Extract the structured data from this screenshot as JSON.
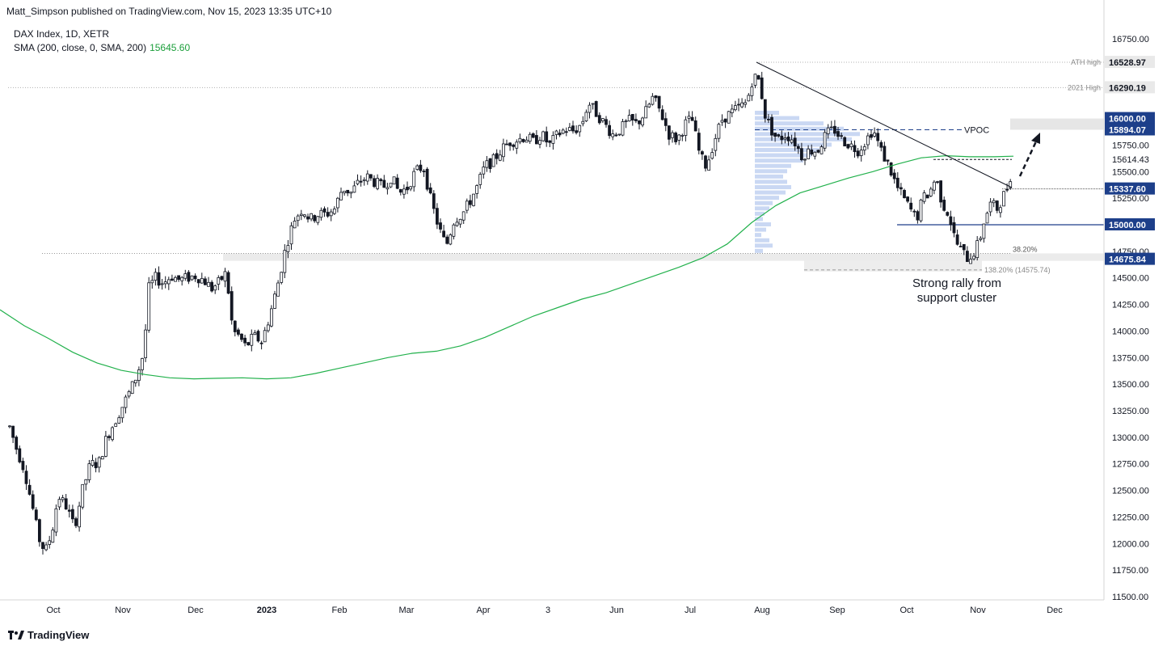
{
  "header": {
    "published": "Matt_Simpson published on TradingView.com, Nov 15, 2023 13:35 UTC+10"
  },
  "legend": {
    "symbol": "DAX Index, 1D, XETR",
    "indicator": "SMA (200, close, 0, SMA, 200)",
    "indicator_value": "15645.60"
  },
  "branding": {
    "logo_text": "TradingView"
  },
  "colors": {
    "up": "#131722",
    "down": "#131722",
    "sma": "#22b14c",
    "price_box": "#1d3f8a",
    "grey_box": "#e6e6e6",
    "vprofile": "#b3c7ee"
  },
  "chart_data": {
    "type": "candlestick",
    "ylim": [
      11500,
      16750
    ],
    "yticks": [
      "16750.00",
      "15750.00",
      "15500.00",
      "15250.00",
      "14750.00",
      "14500.00",
      "14250.00",
      "14000.00",
      "13750.00",
      "13500.00",
      "13250.00",
      "13000.00",
      "12750.00",
      "12500.00",
      "12250.00",
      "12000.00",
      "11750.00",
      "11500.00"
    ],
    "xticks": [
      "Oct",
      "Nov",
      "Dec",
      "2023",
      "Feb",
      "Mar",
      "Apr",
      "3",
      "Jun",
      "Jul",
      "Aug",
      "Sep",
      "Oct",
      "Nov",
      "Dec"
    ],
    "price_labels": [
      {
        "value": 16528.97,
        "text": "16528.97",
        "style": "grey",
        "tag": "ATH high"
      },
      {
        "value": 16290.19,
        "text": "16290.19",
        "style": "grey",
        "tag": "2021 High"
      },
      {
        "value": 16000.0,
        "text": "16000.00",
        "style": "blue"
      },
      {
        "value": 15894.07,
        "text": "15894.07",
        "style": "blue"
      },
      {
        "value": 15614.43,
        "text": "15614.43",
        "style": "plain"
      },
      {
        "value": 15337.6,
        "text": "15337.60",
        "style": "blue"
      },
      {
        "value": 15000.0,
        "text": "15000.00",
        "style": "blue"
      },
      {
        "value": 14675.84,
        "text": "14675.84",
        "style": "blue"
      }
    ],
    "annotations": {
      "vpoc": "VPOC",
      "fib_38": "38.20%",
      "fib_138": "138.20% (14575.74)",
      "rally_line1": "Strong rally from",
      "rally_line2": "support cluster"
    },
    "sma200": [
      [
        0,
        14200
      ],
      [
        30,
        14050
      ],
      [
        60,
        13930
      ],
      [
        90,
        13800
      ],
      [
        120,
        13700
      ],
      [
        150,
        13630
      ],
      [
        180,
        13590
      ],
      [
        210,
        13560
      ],
      [
        240,
        13550
      ],
      [
        270,
        13555
      ],
      [
        300,
        13560
      ],
      [
        330,
        13550
      ],
      [
        360,
        13560
      ],
      [
        390,
        13600
      ],
      [
        420,
        13650
      ],
      [
        450,
        13700
      ],
      [
        480,
        13750
      ],
      [
        510,
        13790
      ],
      [
        540,
        13810
      ],
      [
        570,
        13860
      ],
      [
        600,
        13940
      ],
      [
        630,
        14040
      ],
      [
        660,
        14140
      ],
      [
        690,
        14220
      ],
      [
        720,
        14300
      ],
      [
        750,
        14360
      ],
      [
        780,
        14440
      ],
      [
        810,
        14520
      ],
      [
        840,
        14600
      ],
      [
        870,
        14690
      ],
      [
        900,
        14820
      ],
      [
        930,
        15020
      ],
      [
        960,
        15180
      ],
      [
        990,
        15300
      ],
      [
        1020,
        15370
      ],
      [
        1050,
        15440
      ],
      [
        1080,
        15500
      ],
      [
        1110,
        15570
      ],
      [
        1140,
        15630
      ],
      [
        1170,
        15650
      ],
      [
        1200,
        15640
      ],
      [
        1230,
        15640
      ],
      [
        1254,
        15645
      ]
    ],
    "candles_anchor_path": [
      [
        12,
        13100
      ],
      [
        20,
        12900
      ],
      [
        30,
        12700
      ],
      [
        40,
        12350
      ],
      [
        48,
        12050
      ],
      [
        56,
        11920
      ],
      [
        64,
        12100
      ],
      [
        72,
        12450
      ],
      [
        82,
        12350
      ],
      [
        92,
        12150
      ],
      [
        102,
        12500
      ],
      [
        112,
        12750
      ],
      [
        122,
        12750
      ],
      [
        132,
        13000
      ],
      [
        142,
        13150
      ],
      [
        152,
        13300
      ],
      [
        162,
        13450
      ],
      [
        170,
        13600
      ],
      [
        178,
        13800
      ],
      [
        184,
        14400
      ],
      [
        192,
        14500
      ],
      [
        202,
        14450
      ],
      [
        212,
        14520
      ],
      [
        222,
        14480
      ],
      [
        232,
        14500
      ],
      [
        242,
        14520
      ],
      [
        252,
        14480
      ],
      [
        262,
        14400
      ],
      [
        270,
        14450
      ],
      [
        280,
        14550
      ],
      [
        288,
        14000
      ],
      [
        296,
        13950
      ],
      [
        304,
        13850
      ],
      [
        314,
        13950
      ],
      [
        324,
        13900
      ],
      [
        334,
        14150
      ],
      [
        344,
        14450
      ],
      [
        354,
        14800
      ],
      [
        364,
        15050
      ],
      [
        374,
        15150
      ],
      [
        384,
        15050
      ],
      [
        394,
        15100
      ],
      [
        404,
        15100
      ],
      [
        414,
        15150
      ],
      [
        424,
        15350
      ],
      [
        434,
        15300
      ],
      [
        444,
        15400
      ],
      [
        454,
        15450
      ],
      [
        464,
        15400
      ],
      [
        474,
        15350
      ],
      [
        484,
        15450
      ],
      [
        494,
        15300
      ],
      [
        504,
        15350
      ],
      [
        514,
        15500
      ],
      [
        524,
        15550
      ],
      [
        534,
        15200
      ],
      [
        544,
        14950
      ],
      [
        552,
        14800
      ],
      [
        562,
        15050
      ],
      [
        572,
        15100
      ],
      [
        580,
        15200
      ],
      [
        590,
        15350
      ],
      [
        600,
        15550
      ],
      [
        610,
        15600
      ],
      [
        620,
        15700
      ],
      [
        630,
        15780
      ],
      [
        640,
        15800
      ],
      [
        650,
        15830
      ],
      [
        660,
        15780
      ],
      [
        670,
        15850
      ],
      [
        680,
        15750
      ],
      [
        690,
        15850
      ],
      [
        700,
        15900
      ],
      [
        710,
        15880
      ],
      [
        720,
        15950
      ],
      [
        728,
        16150
      ],
      [
        738,
        16050
      ],
      [
        748,
        15950
      ],
      [
        758,
        15850
      ],
      [
        768,
        15900
      ],
      [
        778,
        15980
      ],
      [
        788,
        15950
      ],
      [
        798,
        16050
      ],
      [
        808,
        16200
      ],
      [
        818,
        16050
      ],
      [
        828,
        15850
      ],
      [
        838,
        15800
      ],
      [
        848,
        15950
      ],
      [
        856,
        16000
      ],
      [
        866,
        15650
      ],
      [
        874,
        15550
      ],
      [
        884,
        15800
      ],
      [
        894,
        16000
      ],
      [
        904,
        16050
      ],
      [
        914,
        16100
      ],
      [
        924,
        16150
      ],
      [
        932,
        16400
      ],
      [
        940,
        16350
      ],
      [
        946,
        16050
      ],
      [
        954,
        15900
      ],
      [
        962,
        15800
      ],
      [
        972,
        15850
      ],
      [
        982,
        15800
      ],
      [
        992,
        15650
      ],
      [
        1002,
        15700
      ],
      [
        1012,
        15700
      ],
      [
        1022,
        15850
      ],
      [
        1032,
        15900
      ],
      [
        1042,
        15800
      ],
      [
        1052,
        15750
      ],
      [
        1062,
        15700
      ],
      [
        1072,
        15800
      ],
      [
        1080,
        15900
      ],
      [
        1090,
        15700
      ],
      [
        1100,
        15550
      ],
      [
        1110,
        15350
      ],
      [
        1118,
        15250
      ],
      [
        1126,
        15150
      ],
      [
        1134,
        15050
      ],
      [
        1142,
        15250
      ],
      [
        1150,
        15300
      ],
      [
        1158,
        15450
      ],
      [
        1166,
        15200
      ],
      [
        1174,
        15100
      ],
      [
        1182,
        14850
      ],
      [
        1190,
        14750
      ],
      [
        1198,
        14680
      ],
      [
        1206,
        14750
      ],
      [
        1212,
        14850
      ],
      [
        1218,
        15050
      ],
      [
        1226,
        15200
      ],
      [
        1234,
        15150
      ],
      [
        1242,
        15280
      ],
      [
        1248,
        15380
      ],
      [
        1254,
        15600
      ]
    ]
  }
}
